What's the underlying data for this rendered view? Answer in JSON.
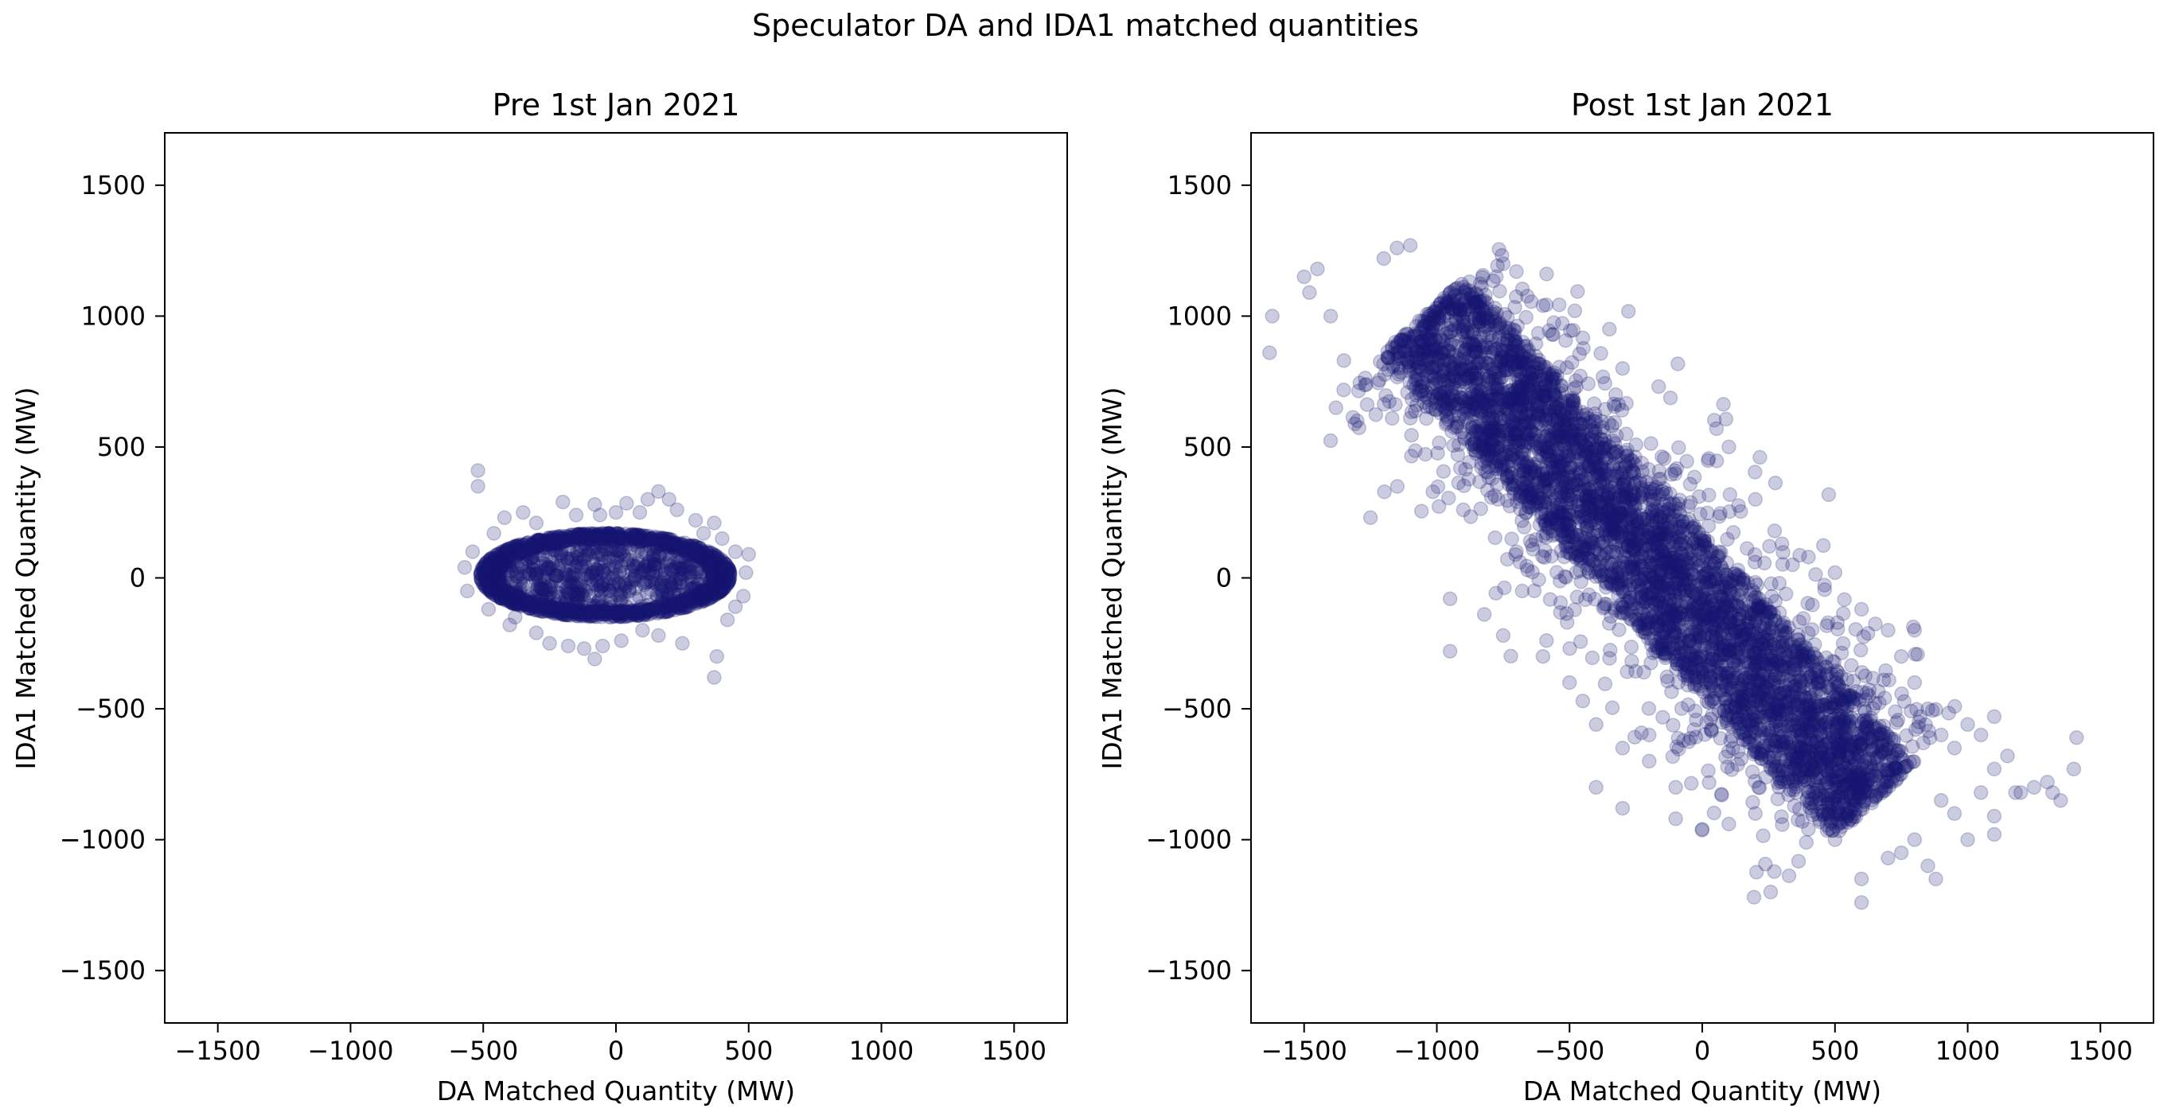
{
  "figure": {
    "suptitle": "Speculator DA and IDA1 matched quantities",
    "marker_color": "#191970",
    "marker_alpha": 0.22
  },
  "chart_data": [
    {
      "type": "scatter",
      "title": "Pre 1st Jan 2021",
      "xlabel": "DA Matched Quantity (MW)",
      "ylabel": "IDA1 Matched Quantity (MW)",
      "xlim": [
        -1700,
        1700
      ],
      "ylim": [
        -1700,
        1700
      ],
      "xticks": [
        -1500,
        -1000,
        -500,
        0,
        500,
        1000,
        1500
      ],
      "yticks": [
        -1500,
        -1000,
        -500,
        0,
        500,
        1000,
        1500
      ],
      "tick_labels": [
        "−1500",
        "−1000",
        "−500",
        "0",
        "500",
        "1000",
        "1500"
      ],
      "grid": false,
      "cloud": {
        "shape": "ellipse",
        "cx": -40,
        "cy": 10,
        "rx": 470,
        "ry": 160,
        "rot_deg": 0,
        "n": 2000
      },
      "outliers": [
        [
          -520,
          410
        ],
        [
          -520,
          350
        ],
        [
          -420,
          230
        ],
        [
          -350,
          250
        ],
        [
          -200,
          290
        ],
        [
          -80,
          280
        ],
        [
          40,
          285
        ],
        [
          120,
          300
        ],
        [
          160,
          330
        ],
        [
          200,
          300
        ],
        [
          300,
          220
        ],
        [
          370,
          210
        ],
        [
          400,
          150
        ],
        [
          450,
          100
        ],
        [
          500,
          90
        ],
        [
          490,
          20
        ],
        [
          480,
          -70
        ],
        [
          450,
          -110
        ],
        [
          380,
          -300
        ],
        [
          370,
          -380
        ],
        [
          250,
          -250
        ],
        [
          160,
          -220
        ],
        [
          100,
          -200
        ],
        [
          20,
          -240
        ],
        [
          -50,
          -260
        ],
        [
          -80,
          -310
        ],
        [
          -120,
          -270
        ],
        [
          -180,
          -260
        ],
        [
          -250,
          -250
        ],
        [
          -300,
          -210
        ],
        [
          -400,
          -180
        ],
        [
          -480,
          -120
        ],
        [
          -560,
          -50
        ],
        [
          -570,
          40
        ],
        [
          -540,
          100
        ],
        [
          -460,
          170
        ],
        [
          -300,
          210
        ],
        [
          -150,
          240
        ],
        [
          330,
          170
        ],
        [
          0,
          250
        ],
        [
          -60,
          240
        ],
        [
          90,
          250
        ],
        [
          230,
          260
        ],
        [
          -380,
          -150
        ],
        [
          420,
          -160
        ]
      ]
    },
    {
      "type": "scatter",
      "title": "Post 1st Jan 2021",
      "xlabel": "DA Matched Quantity (MW)",
      "ylabel": "IDA1 Matched Quantity (MW)",
      "xlim": [
        -1700,
        1700
      ],
      "ylim": [
        -1700,
        1700
      ],
      "xticks": [
        -1500,
        -1000,
        -500,
        0,
        500,
        1000,
        1500
      ],
      "yticks": [
        -1500,
        -1000,
        -500,
        0,
        500,
        1000,
        1500
      ],
      "tick_labels": [
        "−1500",
        "−1000",
        "−500",
        "0",
        "500",
        "1000",
        "1500"
      ],
      "grid": false,
      "cloud": {
        "shape": "band",
        "x0": -1050,
        "y0": 1000,
        "x1": 650,
        "y1": -850,
        "halfwidth": 210,
        "n": 5000
      },
      "outliers": [
        [
          -1630,
          860
        ],
        [
          -1620,
          1000
        ],
        [
          -1500,
          1150
        ],
        [
          -1450,
          1180
        ],
        [
          -1480,
          1090
        ],
        [
          -1400,
          1000
        ],
        [
          -1350,
          830
        ],
        [
          -1380,
          650
        ],
        [
          -1300,
          600
        ],
        [
          -1250,
          230
        ],
        [
          -1200,
          1220
        ],
        [
          -1150,
          1260
        ],
        [
          -1100,
          1270
        ],
        [
          -950,
          -280
        ],
        [
          -950,
          -80
        ],
        [
          -750,
          1200
        ],
        [
          -700,
          1170
        ],
        [
          -600,
          1040
        ],
        [
          -480,
          1020
        ],
        [
          -350,
          950
        ],
        [
          -300,
          800
        ],
        [
          -600,
          160
        ],
        [
          -700,
          100
        ],
        [
          -900,
          260
        ],
        [
          -750,
          -220
        ],
        [
          -600,
          -300
        ],
        [
          -450,
          -470
        ],
        [
          -400,
          -560
        ],
        [
          -300,
          -650
        ],
        [
          -200,
          -700
        ],
        [
          -100,
          -800
        ],
        [
          -200,
          -600
        ],
        [
          -500,
          -400
        ],
        [
          100,
          500
        ],
        [
          200,
          300
        ],
        [
          300,
          130
        ],
        [
          400,
          80
        ],
        [
          500,
          20
        ],
        [
          600,
          -120
        ],
        [
          700,
          -200
        ],
        [
          750,
          -300
        ],
        [
          800,
          -400
        ],
        [
          800,
          -200
        ],
        [
          850,
          -500
        ],
        [
          900,
          -600
        ],
        [
          950,
          -650
        ],
        [
          1000,
          -560
        ],
        [
          1050,
          -600
        ],
        [
          1100,
          -530
        ],
        [
          1100,
          -730
        ],
        [
          1050,
          -820
        ],
        [
          1100,
          -910
        ],
        [
          1100,
          -980
        ],
        [
          1000,
          -1000
        ],
        [
          950,
          -900
        ],
        [
          900,
          -850
        ],
        [
          850,
          -1100
        ],
        [
          800,
          -1000
        ],
        [
          750,
          -1050
        ],
        [
          700,
          -1070
        ],
        [
          600,
          -1150
        ],
        [
          600,
          -1240
        ],
        [
          500,
          -1000
        ],
        [
          400,
          -960
        ],
        [
          200,
          -900
        ],
        [
          100,
          -940
        ],
        [
          0,
          -960
        ],
        [
          -100,
          -920
        ],
        [
          -300,
          -880
        ],
        [
          -400,
          -800
        ],
        [
          1200,
          -820
        ],
        [
          1250,
          -800
        ],
        [
          1300,
          -780
        ],
        [
          1320,
          -820
        ],
        [
          1350,
          -850
        ],
        [
          1400,
          -730
        ],
        [
          1410,
          -610
        ],
        [
          1150,
          -680
        ],
        [
          1180,
          -820
        ],
        [
          880,
          -1150
        ]
      ]
    }
  ]
}
